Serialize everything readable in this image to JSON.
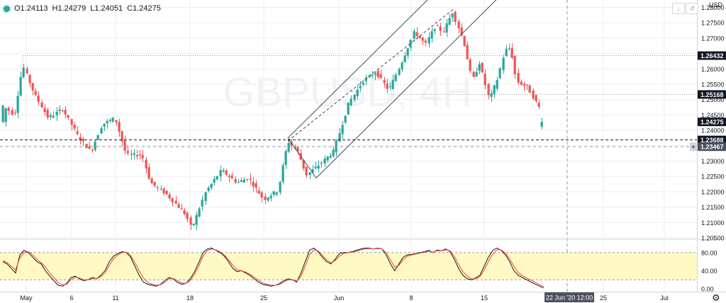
{
  "header": {
    "open_label": "O1.24113",
    "high_label": "H1.24279",
    "low_label": "L1.24051",
    "close_label": "C1.24275",
    "currency": "USD",
    "watermark": "GBPUSD, 4H"
  },
  "colors": {
    "up": "#26a69a",
    "down": "#ef5350",
    "k_line": "#131722",
    "d_line": "#f44336",
    "band_fill": "#fff9c4",
    "grid": "#eceef2",
    "channel": "#434651"
  },
  "chart_data": [
    {
      "type": "candlestick",
      "symbol": "GBPUSD",
      "timeframe": "4H",
      "ylim": [
        1.205,
        1.2815
      ],
      "y_ticks": [
        1.205,
        1.21,
        1.215,
        1.22,
        1.225,
        1.23,
        1.235,
        1.24,
        1.245,
        1.25,
        1.255,
        1.26,
        1.265,
        1.27,
        1.275,
        1.28
      ],
      "y_tick_labels": [
        "1.20500",
        "1.21000",
        "1.21500",
        "1.22000",
        "1.22500",
        "1.23000",
        "1.23500",
        "1.24000",
        "1.24500",
        "1.25000",
        "1.25500",
        "1.26000",
        "1.26500",
        "1.27000",
        "1.27500",
        "1.28000"
      ],
      "x_tick_labels": [
        "May",
        "6",
        "11",
        "18",
        "25",
        "Jun",
        "8",
        "15",
        "22",
        "25",
        "Jul"
      ],
      "last_ohlc": {
        "open": 1.24113,
        "high": 1.24279,
        "low": 1.24051,
        "close": 1.24275
      },
      "price_labels": [
        {
          "text": "1.26432",
          "value": 1.26432,
          "style": "dotted"
        },
        {
          "text": "1.25168",
          "value": 1.25168,
          "style": "dotted"
        },
        {
          "text": "1.24275",
          "value": 1.24275,
          "style": "current"
        },
        {
          "text": "1.23688",
          "value": 1.23688,
          "style": "dashed"
        },
        {
          "text": "1.23467",
          "value": 1.23467,
          "style": "crosshair"
        }
      ],
      "crosshair_time_label": "22 Jun '20   12:00",
      "grid": true
    },
    {
      "type": "line",
      "indicator": "stochastic",
      "ylim": [
        0,
        100
      ],
      "y_ticks": [
        0,
        40,
        80
      ],
      "y_tick_labels": [
        "0.00",
        "40.00",
        "80.00"
      ],
      "band": [
        20,
        80
      ],
      "series": [
        {
          "key": "k",
          "values": [
            60,
            55,
            45,
            35,
            75,
            85,
            80,
            70,
            60,
            55,
            40,
            28,
            18,
            8,
            6,
            12,
            25,
            28,
            22,
            18,
            20,
            25,
            22,
            30,
            40,
            60,
            72,
            78,
            82,
            80,
            70,
            50,
            30,
            15,
            10,
            8,
            6,
            10,
            18,
            25,
            22,
            14,
            10,
            12,
            22,
            38,
            58,
            80,
            88,
            90,
            85,
            80,
            72,
            60,
            45,
            38,
            40,
            35,
            30,
            22,
            15,
            10,
            8,
            6,
            8,
            12,
            18,
            22,
            20,
            15,
            35,
            60,
            85,
            90,
            82,
            70,
            60,
            55,
            65,
            78,
            80,
            80,
            82,
            85,
            88,
            90,
            90,
            88,
            90,
            88,
            75,
            55,
            40,
            55,
            70,
            75,
            76,
            78,
            80,
            82,
            85,
            80,
            86,
            84,
            88,
            82,
            65,
            45,
            30,
            22,
            20,
            24,
            30,
            50,
            70,
            85,
            90,
            85,
            75,
            60,
            40,
            30,
            25,
            20,
            15,
            10,
            6,
            2
          ]
        },
        {
          "key": "d",
          "values": [
            62,
            58,
            50,
            42,
            68,
            80,
            82,
            75,
            65,
            58,
            48,
            35,
            25,
            14,
            9,
            10,
            20,
            26,
            24,
            20,
            20,
            22,
            23,
            27,
            35,
            52,
            66,
            75,
            80,
            81,
            74,
            58,
            40,
            24,
            14,
            10,
            8,
            9,
            14,
            22,
            23,
            18,
            13,
            12,
            18,
            32,
            50,
            72,
            84,
            88,
            86,
            82,
            75,
            64,
            52,
            42,
            40,
            37,
            32,
            26,
            19,
            13,
            10,
            8,
            8,
            10,
            15,
            20,
            20,
            17,
            28,
            50,
            75,
            86,
            84,
            74,
            64,
            58,
            62,
            72,
            78,
            80,
            81,
            83,
            86,
            88,
            89,
            88,
            89,
            88,
            80,
            64,
            48,
            52,
            64,
            72,
            75,
            77,
            79,
            81,
            83,
            81,
            84,
            84,
            86,
            84,
            72,
            54,
            38,
            28,
            22,
            22,
            27,
            42,
            60,
            77,
            86,
            86,
            79,
            66,
            50,
            36,
            29,
            24,
            19,
            14,
            9,
            5
          ]
        }
      ]
    }
  ]
}
